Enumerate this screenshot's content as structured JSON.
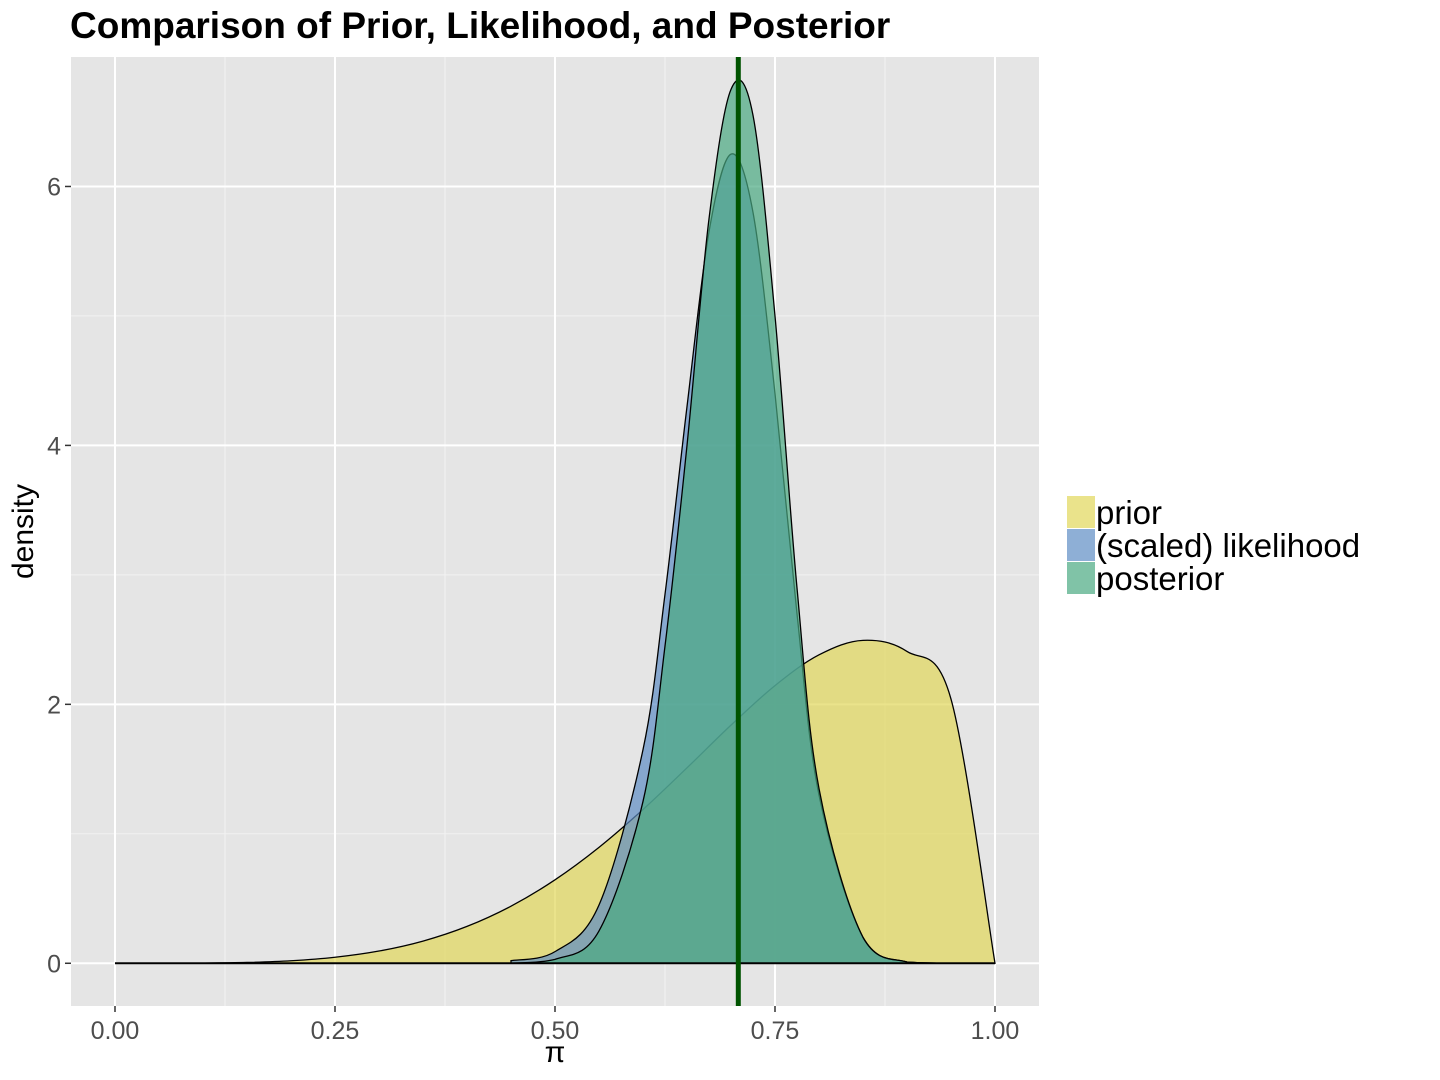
{
  "chart_data": {
    "type": "area",
    "title": "Comparison of Prior, Likelihood, and Posterior",
    "xlabel": "π",
    "ylabel": "density",
    "xlim": [
      -0.05,
      1.05
    ],
    "ylim": [
      -0.33,
      7.0
    ],
    "x_ticks": [
      0.0,
      0.25,
      0.5,
      0.75,
      1.0
    ],
    "x_tick_labels": [
      "0.00",
      "0.25",
      "0.50",
      "0.75",
      "1.00"
    ],
    "y_ticks": [
      0,
      2,
      4,
      6
    ],
    "y_tick_labels": [
      "0",
      "2",
      "4",
      "6"
    ],
    "grid": true,
    "legend_position": "right",
    "series": [
      {
        "name": "prior",
        "color": "#e1d75a",
        "x": [
          0.0,
          0.05,
          0.1,
          0.15,
          0.2,
          0.25,
          0.3,
          0.35,
          0.4,
          0.45,
          0.5,
          0.55,
          0.6,
          0.65,
          0.7,
          0.75,
          0.8,
          0.85,
          0.9,
          0.95,
          1.0
        ],
        "y": [
          0.0,
          0.0001,
          0.0013,
          0.0063,
          0.0194,
          0.0464,
          0.0945,
          0.1714,
          0.2848,
          0.4411,
          0.6445,
          0.8951,
          1.1877,
          1.5096,
          1.8393,
          2.1448,
          2.3823,
          2.4942,
          2.4087,
          2.0408,
          0.0
        ]
      },
      {
        "name": "(scaled) likelihood",
        "color": "#5e8dc4",
        "x": [
          0.45,
          0.5,
          0.55,
          0.6,
          0.625,
          0.65,
          0.675,
          0.7,
          0.725,
          0.75,
          0.775,
          0.8,
          0.85,
          0.9,
          0.95
        ],
        "y": [
          0.02,
          0.09,
          0.45,
          1.65,
          2.85,
          4.3,
          5.65,
          6.25,
          5.8,
          4.4,
          2.7,
          1.3,
          0.2,
          0.01,
          0.0
        ]
      },
      {
        "name": "posterior",
        "color": "#4aaa82",
        "x": [
          0.45,
          0.5,
          0.55,
          0.6,
          0.625,
          0.65,
          0.675,
          0.7,
          0.725,
          0.75,
          0.775,
          0.8,
          0.85,
          0.9,
          0.95
        ],
        "y": [
          0.0,
          0.03,
          0.25,
          1.25,
          2.45,
          4.0,
          5.75,
          6.75,
          6.55,
          5.0,
          2.9,
          1.35,
          0.2,
          0.01,
          0.0
        ]
      }
    ],
    "reference_line": {
      "x": 0.7083,
      "color": "#005300"
    }
  }
}
